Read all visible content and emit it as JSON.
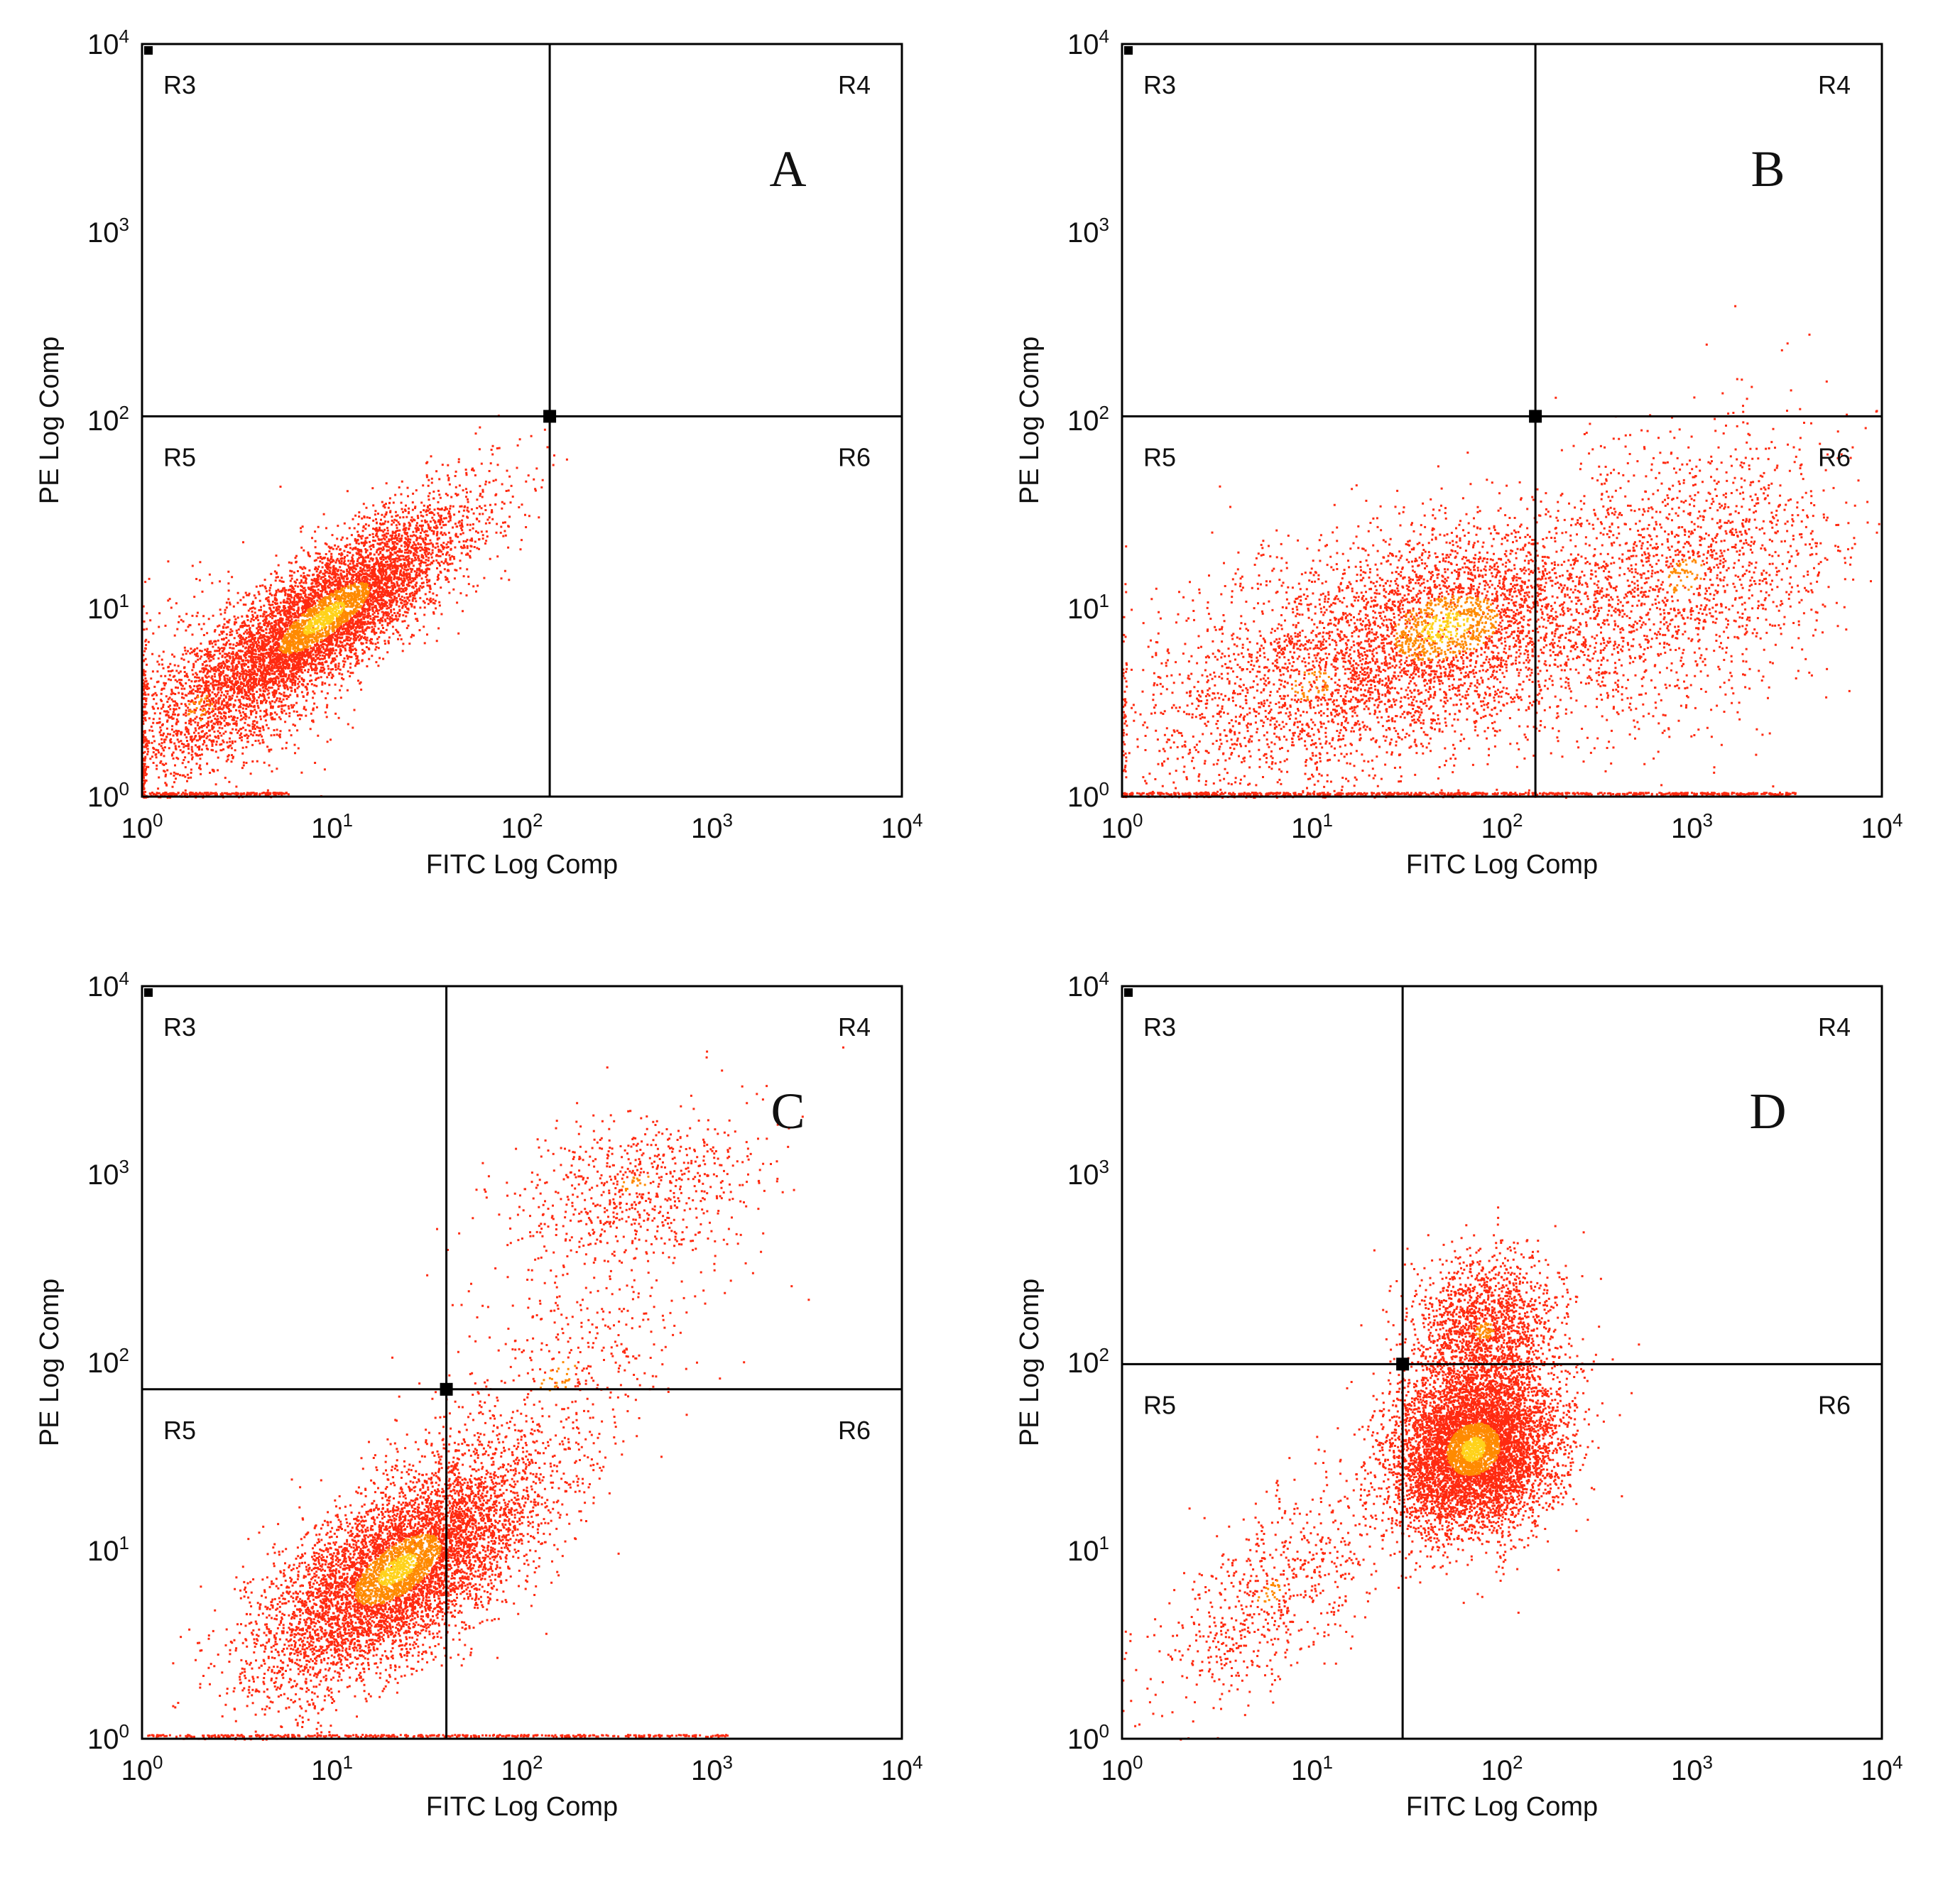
{
  "figure": {
    "description_title": "Flow cytometry dot plots (four panels)"
  },
  "colors": {
    "dot_main": "#ff2a10",
    "dot_dense": "#ff8a00",
    "dot_hot": "#ffd21a",
    "frame": "#000000"
  },
  "chart_data": [
    {
      "type": "scatter",
      "panel_label": "A",
      "xlabel": "FITC Log Comp",
      "ylabel": "PE Log Comp",
      "xscale": "log",
      "yscale": "log",
      "xlim": [
        1,
        10000
      ],
      "ylim": [
        1,
        10000
      ],
      "x_ticks": [
        {
          "base": "10",
          "exp": "0"
        },
        {
          "base": "10",
          "exp": "1"
        },
        {
          "base": "10",
          "exp": "2"
        },
        {
          "base": "10",
          "exp": "3"
        },
        {
          "base": "10",
          "exp": "4"
        }
      ],
      "y_ticks": [
        {
          "base": "10",
          "exp": "0"
        },
        {
          "base": "10",
          "exp": "1"
        },
        {
          "base": "10",
          "exp": "2"
        },
        {
          "base": "10",
          "exp": "3"
        },
        {
          "base": "10",
          "exp": "4"
        }
      ],
      "quadrant_gate": {
        "x": 140,
        "y": 105
      },
      "regions": [
        "R3",
        "R4",
        "R5",
        "R6"
      ],
      "clusters": [
        {
          "cx": 9,
          "cy": 9,
          "sx": 0.38,
          "sy": 0.3,
          "corr": 0.82,
          "n": 6500,
          "region": "main"
        },
        {
          "cx": 2,
          "cy": 3,
          "sx": 0.3,
          "sy": 0.3,
          "corr": 0.3,
          "n": 900,
          "region": "tail"
        }
      ],
      "baseline_points": {
        "xmin": 1,
        "xmax": 6,
        "n": 180
      }
    },
    {
      "type": "scatter",
      "panel_label": "B",
      "xlabel": "FITC Log Comp",
      "ylabel": "PE Log Comp",
      "xscale": "log",
      "yscale": "log",
      "xlim": [
        1,
        10000
      ],
      "ylim": [
        1,
        10000
      ],
      "x_ticks": [
        {
          "base": "10",
          "exp": "0"
        },
        {
          "base": "10",
          "exp": "1"
        },
        {
          "base": "10",
          "exp": "2"
        },
        {
          "base": "10",
          "exp": "3"
        },
        {
          "base": "10",
          "exp": "4"
        }
      ],
      "y_ticks": [
        {
          "base": "10",
          "exp": "0"
        },
        {
          "base": "10",
          "exp": "1"
        },
        {
          "base": "10",
          "exp": "2"
        },
        {
          "base": "10",
          "exp": "3"
        },
        {
          "base": "10",
          "exp": "4"
        }
      ],
      "quadrant_gate": {
        "x": 150,
        "y": 105
      },
      "regions": [
        "R3",
        "R4",
        "R5",
        "R6"
      ],
      "clusters": [
        {
          "cx": 50,
          "cy": 8,
          "sx": 0.45,
          "sy": 0.28,
          "corr": 0.3,
          "n": 3000,
          "region": "main"
        },
        {
          "cx": 10,
          "cy": 4,
          "sx": 0.55,
          "sy": 0.35,
          "corr": 0.3,
          "n": 1800,
          "region": "left"
        },
        {
          "cx": 900,
          "cy": 15,
          "sx": 0.42,
          "sy": 0.4,
          "corr": 0.35,
          "n": 1800,
          "region": "right"
        }
      ],
      "baseline_points": {
        "xmin": 1,
        "xmax": 3500,
        "n": 700
      }
    },
    {
      "type": "scatter",
      "panel_label": "C",
      "xlabel": "FITC Log Comp",
      "ylabel": "PE Log Comp",
      "xscale": "log",
      "yscale": "log",
      "xlim": [
        1,
        10000
      ],
      "ylim": [
        1,
        10000
      ],
      "x_ticks": [
        {
          "base": "10",
          "exp": "0"
        },
        {
          "base": "10",
          "exp": "1"
        },
        {
          "base": "10",
          "exp": "2"
        },
        {
          "base": "10",
          "exp": "3"
        },
        {
          "base": "10",
          "exp": "4"
        }
      ],
      "y_ticks": [
        {
          "base": "10",
          "exp": "0"
        },
        {
          "base": "10",
          "exp": "1"
        },
        {
          "base": "10",
          "exp": "2"
        },
        {
          "base": "10",
          "exp": "3"
        },
        {
          "base": "10",
          "exp": "4"
        }
      ],
      "quadrant_gate": {
        "x": 40,
        "y": 72
      },
      "regions": [
        "R3",
        "R4",
        "R5",
        "R6"
      ],
      "clusters": [
        {
          "cx": 22,
          "cy": 8,
          "sx": 0.36,
          "sy": 0.3,
          "corr": 0.65,
          "n": 6500,
          "region": "main"
        },
        {
          "cx": 400,
          "cy": 900,
          "sx": 0.35,
          "sy": 0.2,
          "corr": 0.3,
          "n": 650,
          "region": "upper-right"
        },
        {
          "cx": 150,
          "cy": 80,
          "sx": 0.45,
          "sy": 0.55,
          "corr": 0.7,
          "n": 700,
          "region": "bridge"
        }
      ],
      "baseline_points": {
        "xmin": 1,
        "xmax": 1200,
        "n": 400
      }
    },
    {
      "type": "scatter",
      "panel_label": "D",
      "xlabel": "FITC Log Comp",
      "ylabel": "PE Log Comp",
      "xscale": "log",
      "yscale": "log",
      "xlim": [
        1,
        10000
      ],
      "ylim": [
        1,
        10000
      ],
      "x_ticks": [
        {
          "base": "10",
          "exp": "0"
        },
        {
          "base": "10",
          "exp": "1"
        },
        {
          "base": "10",
          "exp": "2"
        },
        {
          "base": "10",
          "exp": "3"
        },
        {
          "base": "10",
          "exp": "4"
        }
      ],
      "y_ticks": [
        {
          "base": "10",
          "exp": "0"
        },
        {
          "base": "10",
          "exp": "1"
        },
        {
          "base": "10",
          "exp": "2"
        },
        {
          "base": "10",
          "exp": "3"
        },
        {
          "base": "10",
          "exp": "4"
        }
      ],
      "quadrant_gate": {
        "x": 30,
        "y": 98
      },
      "regions": [
        "R3",
        "R4",
        "R5",
        "R6"
      ],
      "clusters": [
        {
          "cx": 70,
          "cy": 35,
          "sx": 0.22,
          "sy": 0.22,
          "corr": 0.15,
          "n": 6500,
          "region": "main"
        },
        {
          "cx": 80,
          "cy": 150,
          "sx": 0.2,
          "sy": 0.2,
          "corr": 0.1,
          "n": 1700,
          "region": "upper"
        },
        {
          "cx": 6,
          "cy": 6,
          "sx": 0.3,
          "sy": 0.3,
          "corr": 0.6,
          "n": 700,
          "region": "lower-left"
        }
      ],
      "baseline_points": {
        "xmin": 1,
        "xmax": 1,
        "n": 0
      }
    }
  ]
}
